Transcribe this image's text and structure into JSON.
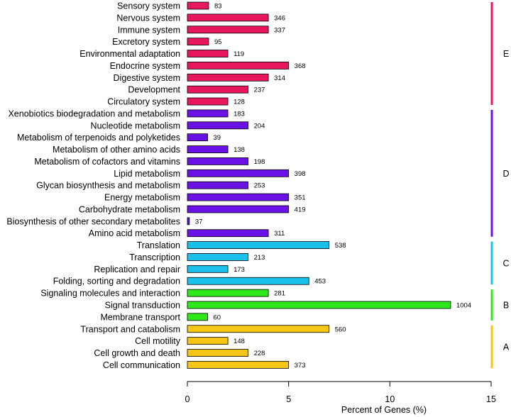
{
  "chart_data": {
    "type": "bar",
    "orientation": "horizontal",
    "xlabel": "Percent of Genes (%)",
    "xlim": [
      0,
      15
    ],
    "xticks": [
      0,
      5,
      10,
      15
    ],
    "xtick_labels": [
      "0",
      "5",
      "10",
      "15"
    ],
    "grid": false,
    "categories": [
      "Sensory system",
      "Nervous system",
      "Immune system",
      "Excretory system",
      "Environmental adaptation",
      "Endocrine system",
      "Digestive system",
      "Development",
      "Circulatory system",
      "Xenobiotics biodegradation and metabolism",
      "Nucleotide metabolism",
      "Metabolism of terpenoids and polyketides",
      "Metabolism of other amino acids",
      "Metabolism of cofactors and vitamins",
      "Lipid metabolism",
      "Glycan biosynthesis and metabolism",
      "Energy metabolism",
      "Carbohydrate metabolism",
      "Biosynthesis of other secondary metabolites",
      "Amino acid metabolism",
      "Translation",
      "Transcription",
      "Replication and repair",
      "Folding, sorting and degradation",
      "Signaling molecules and interaction",
      "Signal transduction",
      "Membrane transport",
      "Transport and catabolism",
      "Cell motility",
      "Cell growth and death",
      "Cell communication"
    ],
    "percent_values": [
      1.05,
      4.0,
      4.0,
      1.05,
      2.0,
      5.0,
      4.0,
      3.0,
      2.0,
      2.0,
      3.0,
      1.0,
      2.0,
      3.0,
      5.0,
      3.0,
      5.0,
      5.0,
      0.1,
      4.0,
      7.0,
      3.0,
      2.0,
      6.0,
      4.0,
      13.0,
      1.0,
      7.0,
      2.0,
      3.0,
      5.0
    ],
    "count_labels": [
      "83",
      "346",
      "337",
      "95",
      "119",
      "368",
      "314",
      "237",
      "128",
      "183",
      "204",
      "39",
      "138",
      "198",
      "398",
      "253",
      "351",
      "419",
      "37",
      "311",
      "538",
      "213",
      "173",
      "453",
      "281",
      "1004",
      "60",
      "560",
      "148",
      "228",
      "373"
    ],
    "groups": [
      {
        "label": "E",
        "color": "#e8175d",
        "from": 0,
        "to": 8
      },
      {
        "label": "D",
        "color": "#6a11e6",
        "from": 9,
        "to": 19
      },
      {
        "label": "C",
        "color": "#19c0eb",
        "from": 20,
        "to": 23
      },
      {
        "label": "B",
        "color": "#2ee81c",
        "from": 24,
        "to": 26
      },
      {
        "label": "A",
        "color": "#f7c614",
        "from": 27,
        "to": 30
      }
    ]
  }
}
